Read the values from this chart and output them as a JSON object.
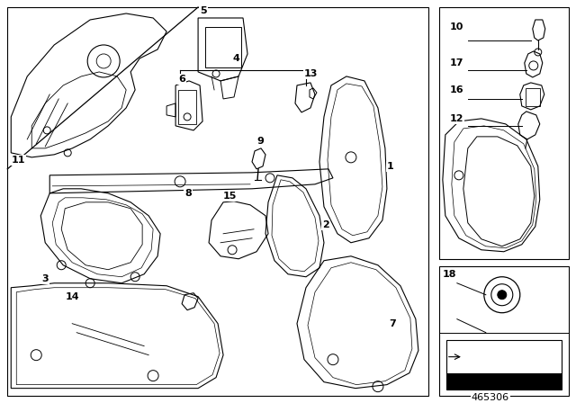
{
  "bg_color": "#ffffff",
  "fig_width": 6.4,
  "fig_height": 4.48,
  "dpi": 100,
  "diagram_number": "465306",
  "lw": 0.7
}
